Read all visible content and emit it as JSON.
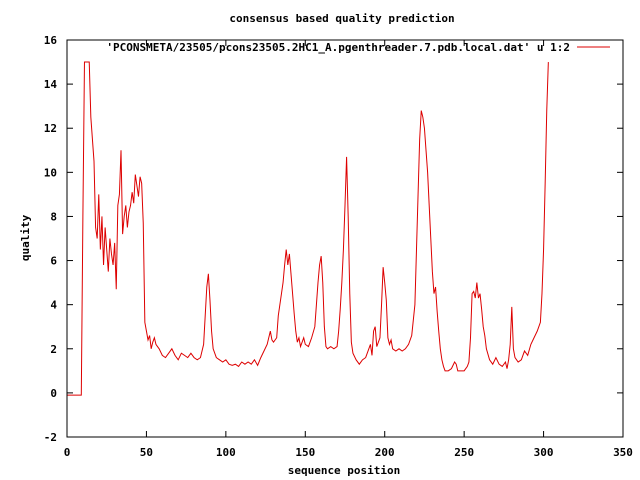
{
  "chart_data": {
    "type": "line",
    "title": "consensus based quality prediction",
    "xlabel": "sequence position",
    "ylabel": "quality",
    "xlim": [
      0,
      350
    ],
    "ylim": [
      -2,
      16
    ],
    "x_ticks": [
      0,
      50,
      100,
      150,
      200,
      250,
      300,
      350
    ],
    "y_ticks": [
      -2,
      0,
      2,
      4,
      6,
      8,
      10,
      12,
      14,
      16
    ],
    "legend_position": "top-right",
    "grid": false,
    "series": [
      {
        "name": "'PCONSMETA/23505/pcons23505.2HC1_A.pgenthreader.7.pdb.local.dat' u 1:2",
        "color": "#dd0000",
        "points": [
          [
            0,
            -0.1
          ],
          [
            9,
            -0.1
          ],
          [
            10,
            8
          ],
          [
            11,
            15
          ],
          [
            14,
            15
          ],
          [
            15,
            12.5
          ],
          [
            17,
            10.5
          ],
          [
            18,
            7.5
          ],
          [
            19,
            7
          ],
          [
            20,
            9
          ],
          [
            21,
            6.5
          ],
          [
            22,
            8
          ],
          [
            23,
            5.8
          ],
          [
            24,
            7.5
          ],
          [
            25,
            6.5
          ],
          [
            26,
            5.5
          ],
          [
            27,
            7
          ],
          [
            28,
            6.3
          ],
          [
            29,
            5.8
          ],
          [
            30,
            6.8
          ],
          [
            31,
            4.7
          ],
          [
            32,
            8.5
          ],
          [
            33,
            9
          ],
          [
            34,
            11
          ],
          [
            35,
            7.2
          ],
          [
            36,
            8
          ],
          [
            37,
            8.5
          ],
          [
            38,
            7.5
          ],
          [
            39,
            8.2
          ],
          [
            40,
            8.5
          ],
          [
            41,
            9.1
          ],
          [
            42,
            8.6
          ],
          [
            43,
            9.9
          ],
          [
            44,
            9.4
          ],
          [
            45,
            8.9
          ],
          [
            46,
            9.8
          ],
          [
            47,
            9.5
          ],
          [
            48,
            7.7
          ],
          [
            49,
            3.2
          ],
          [
            50,
            2.8
          ],
          [
            51,
            2.4
          ],
          [
            52,
            2.6
          ],
          [
            53,
            2
          ],
          [
            54,
            2.3
          ],
          [
            55,
            2.5
          ],
          [
            56,
            2.2
          ],
          [
            58,
            2
          ],
          [
            60,
            1.7
          ],
          [
            62,
            1.6
          ],
          [
            64,
            1.8
          ],
          [
            66,
            2
          ],
          [
            68,
            1.7
          ],
          [
            70,
            1.5
          ],
          [
            72,
            1.8
          ],
          [
            74,
            1.7
          ],
          [
            76,
            1.6
          ],
          [
            78,
            1.8
          ],
          [
            80,
            1.6
          ],
          [
            82,
            1.5
          ],
          [
            84,
            1.6
          ],
          [
            86,
            2.2
          ],
          [
            87,
            3.5
          ],
          [
            88,
            4.8
          ],
          [
            89,
            5.4
          ],
          [
            90,
            4.2
          ],
          [
            91,
            2.8
          ],
          [
            92,
            2
          ],
          [
            94,
            1.6
          ],
          [
            96,
            1.5
          ],
          [
            98,
            1.4
          ],
          [
            100,
            1.5
          ],
          [
            102,
            1.3
          ],
          [
            104,
            1.25
          ],
          [
            106,
            1.3
          ],
          [
            108,
            1.2
          ],
          [
            110,
            1.4
          ],
          [
            112,
            1.3
          ],
          [
            114,
            1.4
          ],
          [
            116,
            1.3
          ],
          [
            118,
            1.5
          ],
          [
            120,
            1.25
          ],
          [
            122,
            1.6
          ],
          [
            124,
            1.9
          ],
          [
            126,
            2.2
          ],
          [
            128,
            2.8
          ],
          [
            129,
            2.4
          ],
          [
            130,
            2.3
          ],
          [
            132,
            2.5
          ],
          [
            133,
            3.5
          ],
          [
            134,
            4
          ],
          [
            135,
            4.5
          ],
          [
            136,
            5
          ],
          [
            137,
            5.8
          ],
          [
            138,
            6.5
          ],
          [
            139,
            5.8
          ],
          [
            140,
            6.3
          ],
          [
            141,
            5.4
          ],
          [
            142,
            4.5
          ],
          [
            143,
            3.6
          ],
          [
            144,
            2.8
          ],
          [
            145,
            2.3
          ],
          [
            146,
            2.5
          ],
          [
            147,
            2.1
          ],
          [
            148,
            2.3
          ],
          [
            149,
            2.5
          ],
          [
            150,
            2.2
          ],
          [
            152,
            2.1
          ],
          [
            154,
            2.5
          ],
          [
            156,
            3
          ],
          [
            157,
            4
          ],
          [
            158,
            5
          ],
          [
            159,
            5.8
          ],
          [
            160,
            6.2
          ],
          [
            161,
            5
          ],
          [
            162,
            3
          ],
          [
            163,
            2.1
          ],
          [
            164,
            2
          ],
          [
            166,
            2.1
          ],
          [
            168,
            2
          ],
          [
            170,
            2.1
          ],
          [
            171,
            2.8
          ],
          [
            172,
            3.8
          ],
          [
            173,
            5
          ],
          [
            174,
            6.5
          ],
          [
            175,
            8.5
          ],
          [
            176,
            10.7
          ],
          [
            177,
            8
          ],
          [
            178,
            4.5
          ],
          [
            179,
            2.3
          ],
          [
            180,
            1.8
          ],
          [
            182,
            1.5
          ],
          [
            184,
            1.3
          ],
          [
            186,
            1.5
          ],
          [
            188,
            1.6
          ],
          [
            190,
            2
          ],
          [
            191,
            2.2
          ],
          [
            192,
            1.7
          ],
          [
            193,
            2.8
          ],
          [
            194,
            3
          ],
          [
            195,
            2.1
          ],
          [
            196,
            2.3
          ],
          [
            197,
            2.5
          ],
          [
            198,
            4
          ],
          [
            199,
            5.7
          ],
          [
            200,
            5
          ],
          [
            201,
            4.2
          ],
          [
            202,
            2.5
          ],
          [
            203,
            2.2
          ],
          [
            204,
            2.4
          ],
          [
            205,
            2
          ],
          [
            207,
            1.9
          ],
          [
            209,
            2
          ],
          [
            211,
            1.9
          ],
          [
            213,
            2
          ],
          [
            215,
            2.2
          ],
          [
            217,
            2.6
          ],
          [
            219,
            4
          ],
          [
            220,
            6.5
          ],
          [
            221,
            9
          ],
          [
            222,
            11.5
          ],
          [
            223,
            12.8
          ],
          [
            224,
            12.5
          ],
          [
            225,
            12
          ],
          [
            226,
            11
          ],
          [
            227,
            10
          ],
          [
            228,
            8.5
          ],
          [
            229,
            7
          ],
          [
            230,
            5.5
          ],
          [
            231,
            4.5
          ],
          [
            232,
            4.8
          ],
          [
            233,
            3.7
          ],
          [
            234,
            2.8
          ],
          [
            235,
            2
          ],
          [
            236,
            1.5
          ],
          [
            237,
            1.2
          ],
          [
            238,
            1
          ],
          [
            240,
            1
          ],
          [
            242,
            1.1
          ],
          [
            244,
            1.4
          ],
          [
            245,
            1.3
          ],
          [
            246,
            1
          ],
          [
            248,
            1
          ],
          [
            250,
            1
          ],
          [
            252,
            1.2
          ],
          [
            253,
            1.4
          ],
          [
            254,
            2.5
          ],
          [
            255,
            4.5
          ],
          [
            256,
            4.6
          ],
          [
            257,
            4.3
          ],
          [
            258,
            5
          ],
          [
            259,
            4.3
          ],
          [
            260,
            4.5
          ],
          [
            261,
            3.8
          ],
          [
            262,
            3
          ],
          [
            263,
            2.6
          ],
          [
            264,
            2
          ],
          [
            266,
            1.5
          ],
          [
            268,
            1.3
          ],
          [
            270,
            1.6
          ],
          [
            272,
            1.3
          ],
          [
            274,
            1.2
          ],
          [
            276,
            1.4
          ],
          [
            277,
            1.1
          ],
          [
            278,
            1.5
          ],
          [
            279,
            2.2
          ],
          [
            280,
            3.9
          ],
          [
            281,
            2
          ],
          [
            282,
            1.6
          ],
          [
            284,
            1.4
          ],
          [
            286,
            1.5
          ],
          [
            288,
            1.9
          ],
          [
            290,
            1.7
          ],
          [
            292,
            2.2
          ],
          [
            294,
            2.5
          ],
          [
            296,
            2.8
          ],
          [
            298,
            3.2
          ],
          [
            299,
            4.5
          ],
          [
            300,
            6.5
          ],
          [
            301,
            9.5
          ],
          [
            302,
            12.8
          ],
          [
            303,
            15
          ]
        ]
      }
    ]
  }
}
